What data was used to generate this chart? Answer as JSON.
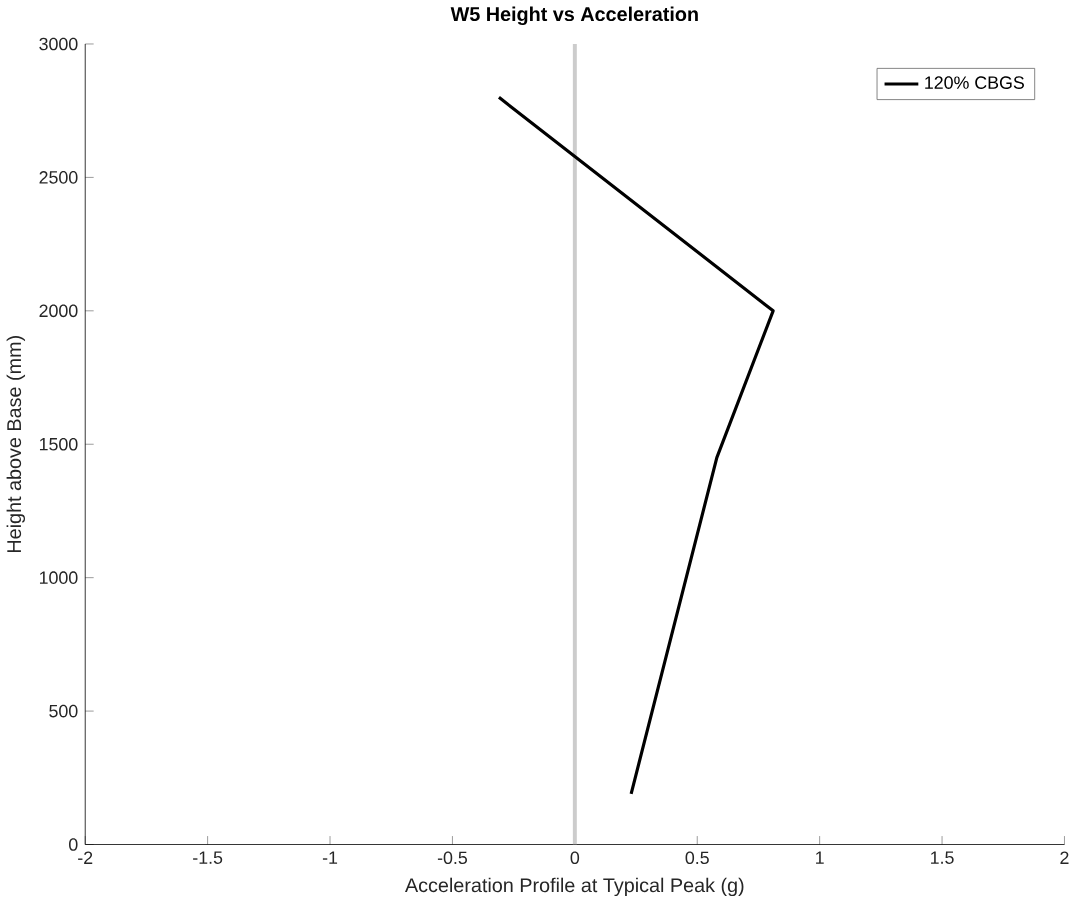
{
  "chart_data": {
    "type": "line",
    "title": "W5 Height vs Acceleration",
    "xlabel": "Acceleration Profile at Typical Peak (g)",
    "ylabel": "Height above Base (mm)",
    "xlim": [
      -2,
      2
    ],
    "ylim": [
      0,
      3000
    ],
    "xticks": [
      -2,
      -1.5,
      -1,
      -0.5,
      0,
      0.5,
      1,
      1.5,
      2
    ],
    "yticks": [
      0,
      500,
      1000,
      1500,
      2000,
      2500,
      3000
    ],
    "series": [
      {
        "name": "120% CBGS",
        "color": "#000000",
        "x": [
          0.23,
          0.58,
          0.81,
          -0.31
        ],
        "values": [
          190,
          1450,
          2000,
          2800
        ]
      }
    ],
    "ref_lines": [
      {
        "axis": "x",
        "value": 0,
        "color": "#cccccc"
      }
    ],
    "legend": "top right"
  }
}
